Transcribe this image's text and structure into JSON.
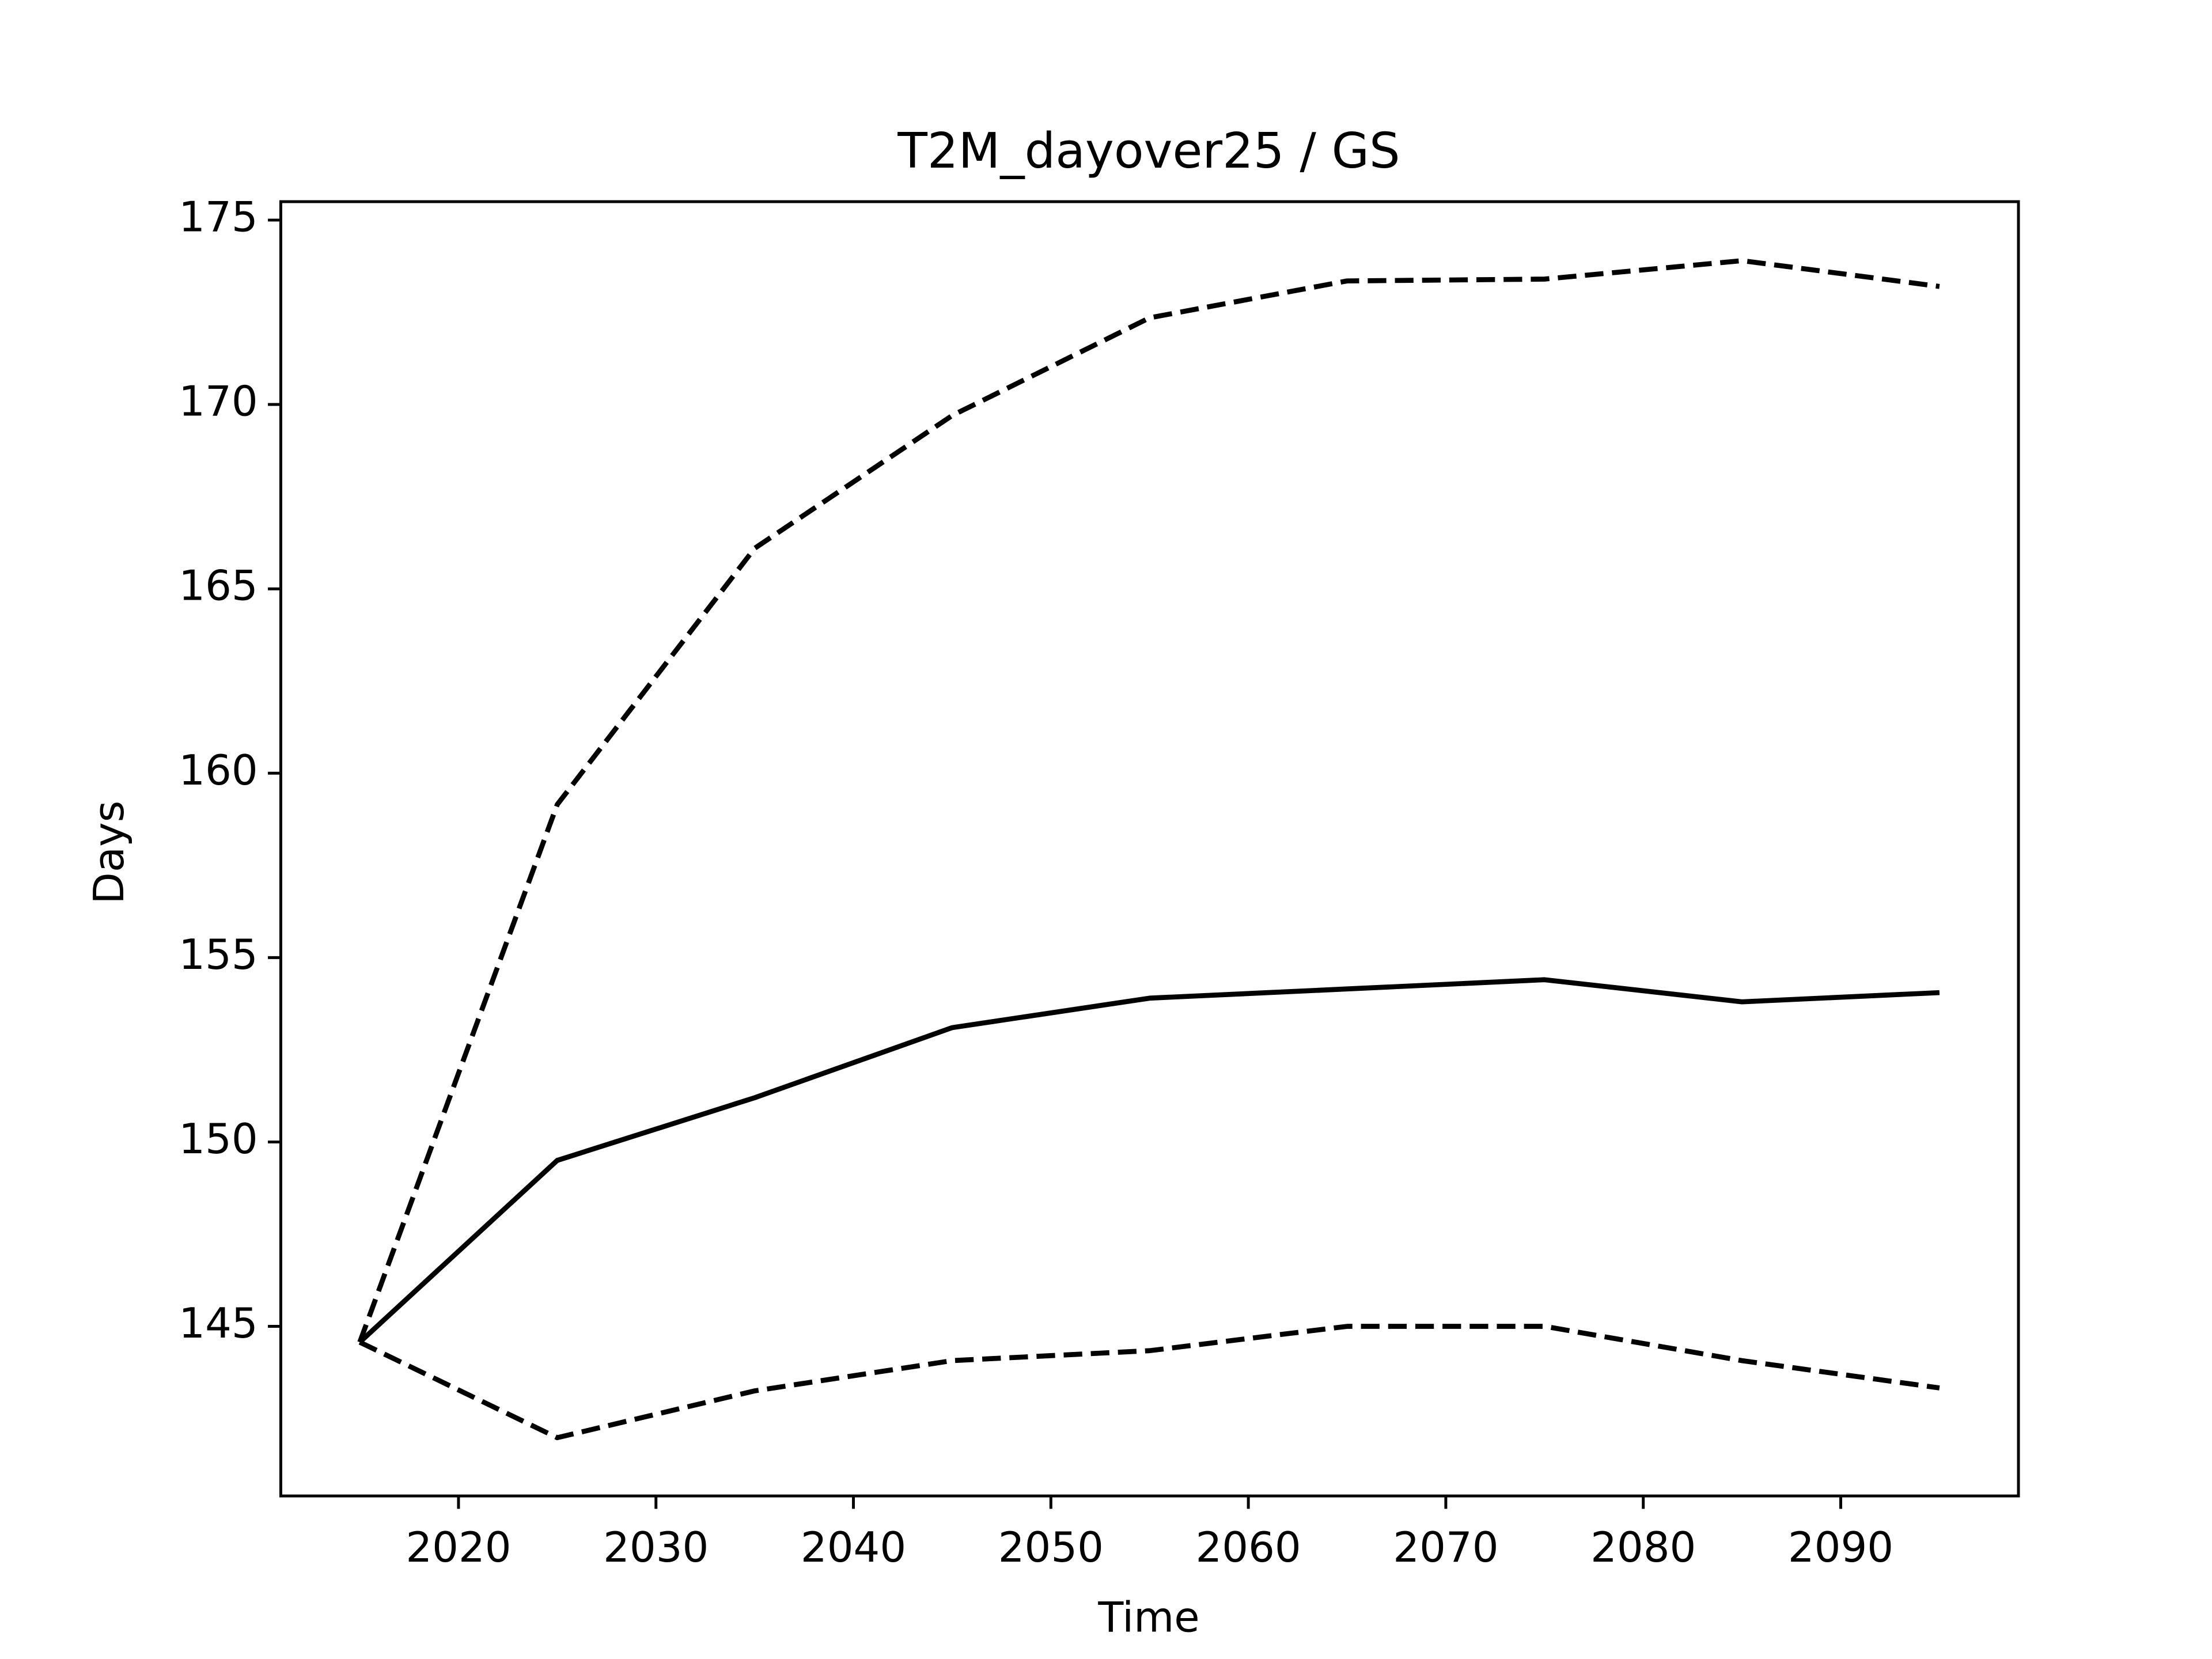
{
  "chart_data": {
    "type": "line",
    "title": "T2M_dayover25 / GS",
    "x_label": "Time",
    "y_label": "Days",
    "x": [
      2015,
      2025,
      2035,
      2045,
      2055,
      2065,
      2075,
      2085,
      2095
    ],
    "series": [
      {
        "color": "#000000",
        "linestyle": "solid",
        "values": [
          144.57,
          149.5,
          151.2,
          153.1,
          153.9,
          154.15,
          154.4,
          153.8,
          154.05
        ]
      },
      {
        "color": "#000000",
        "linestyle": "dashed",
        "values": [
          144.57,
          159.15,
          166.1,
          169.7,
          172.35,
          173.35,
          173.4,
          173.9,
          173.2
        ]
      },
      {
        "color": "#000000",
        "linestyle": "dashed",
        "values": [
          144.57,
          141.98,
          143.25,
          144.07,
          144.34,
          145.0,
          145.0,
          144.07,
          143.33
        ]
      }
    ],
    "xlim": [
      2011,
      2099
    ],
    "ylim": [
      140.4,
      175.5
    ],
    "xticks": [
      2020,
      2030,
      2040,
      2050,
      2060,
      2070,
      2080,
      2090
    ],
    "yticks": [
      145,
      150,
      155,
      160,
      165,
      170,
      175
    ]
  }
}
